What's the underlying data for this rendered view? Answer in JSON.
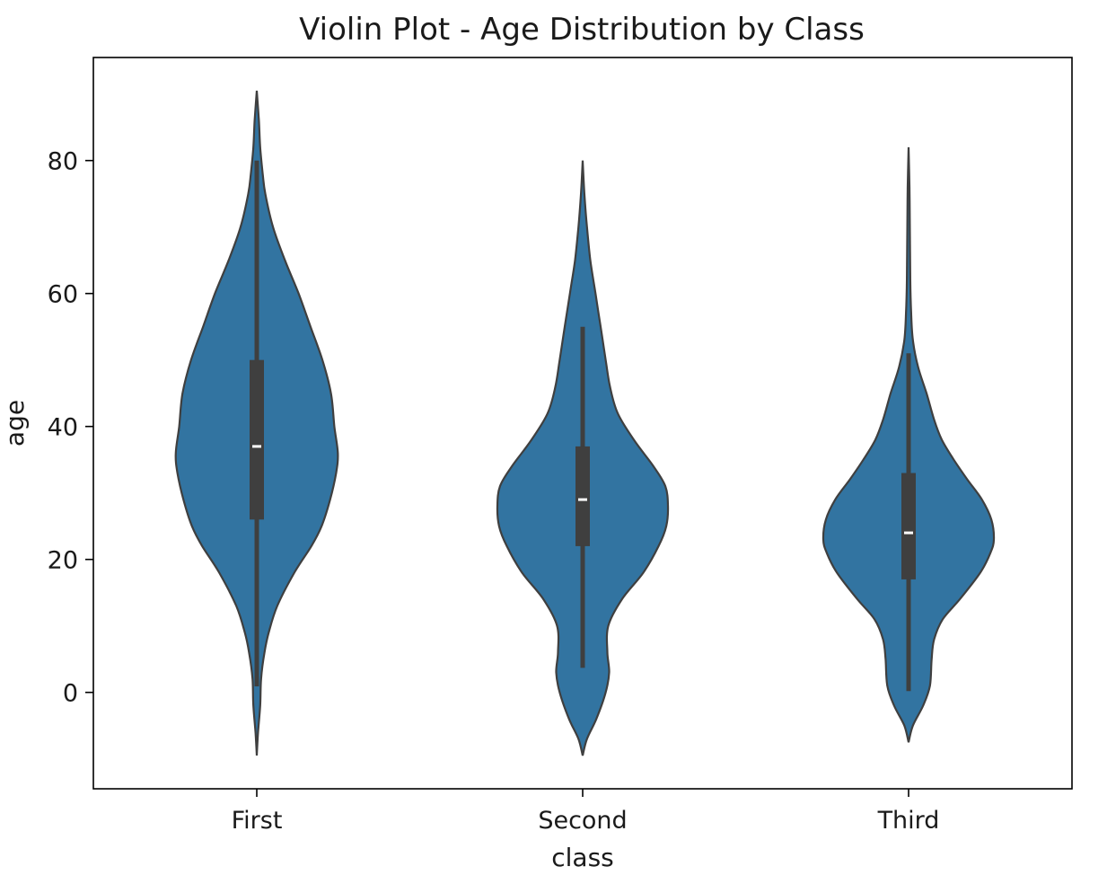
{
  "chart_data": {
    "type": "violin",
    "title": "Violin Plot - Age Distribution by Class",
    "xlabel": "class",
    "ylabel": "age",
    "categories": [
      "First",
      "Second",
      "Third"
    ],
    "ylim": [
      -14.5,
      95.5
    ],
    "yticks": [
      0,
      20,
      40,
      60,
      80
    ],
    "grid": false,
    "fill_color": "#3274a1",
    "edge_color": "#3f3f3f",
    "box_color": "#3f3f3f",
    "median_color": "#ffffff",
    "violins": [
      {
        "category": "First",
        "quartiles": [
          26,
          37,
          50
        ],
        "whiskers": [
          0.9,
          80
        ],
        "density": [
          [
            -9.5,
            0.0
          ],
          [
            -6,
            0.015
          ],
          [
            -2,
            0.04
          ],
          [
            2,
            0.05
          ],
          [
            6,
            0.09
          ],
          [
            9,
            0.14
          ],
          [
            13,
            0.24
          ],
          [
            18,
            0.44
          ],
          [
            22,
            0.64
          ],
          [
            25,
            0.76
          ],
          [
            29,
            0.86
          ],
          [
            33,
            0.93
          ],
          [
            36,
            0.95
          ],
          [
            40,
            0.91
          ],
          [
            45,
            0.87
          ],
          [
            50,
            0.77
          ],
          [
            55,
            0.63
          ],
          [
            60,
            0.49
          ],
          [
            65,
            0.33
          ],
          [
            70,
            0.19
          ],
          [
            75,
            0.1
          ],
          [
            78,
            0.07
          ],
          [
            82,
            0.04
          ],
          [
            86,
            0.025
          ],
          [
            90.5,
            0.0
          ]
        ]
      },
      {
        "category": "Second",
        "quartiles": [
          22,
          29,
          37
        ],
        "whiskers": [
          3.7,
          55
        ],
        "density": [
          [
            -9.5,
            0.0
          ],
          [
            -7,
            0.05
          ],
          [
            -4,
            0.16
          ],
          [
            0,
            0.27
          ],
          [
            3,
            0.31
          ],
          [
            6,
            0.29
          ],
          [
            10,
            0.3
          ],
          [
            14,
            0.46
          ],
          [
            18,
            0.71
          ],
          [
            22,
            0.89
          ],
          [
            25,
            0.98
          ],
          [
            28,
            1.0
          ],
          [
            31,
            0.97
          ],
          [
            34,
            0.83
          ],
          [
            38,
            0.6
          ],
          [
            42,
            0.41
          ],
          [
            46,
            0.32
          ],
          [
            50,
            0.27
          ],
          [
            55,
            0.21
          ],
          [
            60,
            0.15
          ],
          [
            65,
            0.09
          ],
          [
            70,
            0.05
          ],
          [
            75,
            0.02
          ],
          [
            80,
            0.0
          ]
        ]
      },
      {
        "category": "Third",
        "quartiles": [
          17,
          24,
          33
        ],
        "whiskers": [
          0.2,
          51
        ],
        "density": [
          [
            -7.5,
            0.0
          ],
          [
            -5,
            0.05
          ],
          [
            -2,
            0.17
          ],
          [
            1,
            0.25
          ],
          [
            5,
            0.27
          ],
          [
            8,
            0.3
          ],
          [
            11,
            0.4
          ],
          [
            14,
            0.6
          ],
          [
            18,
            0.84
          ],
          [
            21,
            0.96
          ],
          [
            23,
            1.0
          ],
          [
            26,
            0.97
          ],
          [
            29,
            0.86
          ],
          [
            32,
            0.69
          ],
          [
            35,
            0.53
          ],
          [
            38,
            0.39
          ],
          [
            41,
            0.3
          ],
          [
            45,
            0.21
          ],
          [
            49,
            0.11
          ],
          [
            53,
            0.05
          ],
          [
            57,
            0.03
          ],
          [
            62,
            0.02
          ],
          [
            70,
            0.015
          ],
          [
            76,
            0.01
          ],
          [
            82,
            0.0
          ]
        ]
      }
    ]
  }
}
